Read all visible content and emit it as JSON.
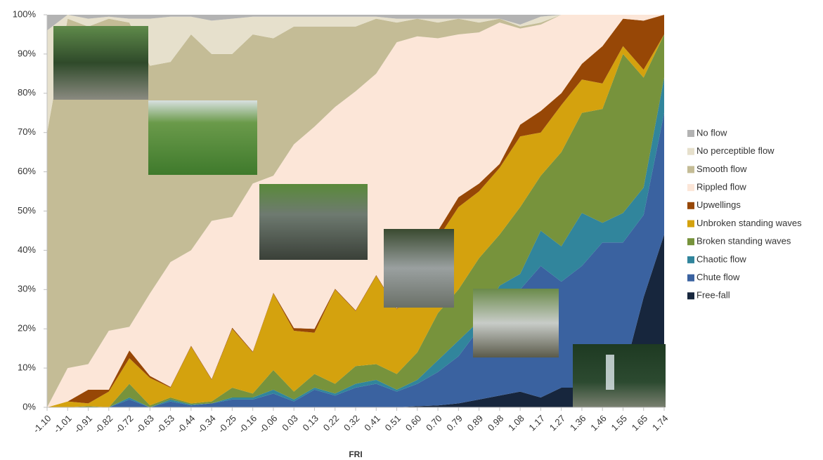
{
  "chart_data": {
    "type": "stacked_area_100",
    "x_label": "FRI",
    "categories": [
      "-1.10",
      "-1.01",
      "-0.91",
      "-0.82",
      "-0.72",
      "-0.63",
      "-0.53",
      "-0.44",
      "-0.34",
      "-0.25",
      "-0.16",
      "-0.06",
      "0.03",
      "0.13",
      "0.22",
      "0.32",
      "0.41",
      "0.51",
      "0.60",
      "0.70",
      "0.79",
      "0.89",
      "0.98",
      "1.08",
      "1.17",
      "1.27",
      "1.36",
      "1.46",
      "1.55",
      "1.65",
      "1.74"
    ],
    "ylim": [
      0,
      100
    ],
    "yticks": [
      {
        "value": 0,
        "label": "0%"
      },
      {
        "value": 10,
        "label": "10%"
      },
      {
        "value": 20,
        "label": "20%"
      },
      {
        "value": 30,
        "label": "30%"
      },
      {
        "value": 40,
        "label": "40%"
      },
      {
        "value": 50,
        "label": "50%"
      },
      {
        "value": 60,
        "label": "60%"
      },
      {
        "value": 70,
        "label": "70%"
      },
      {
        "value": 80,
        "label": "80%"
      },
      {
        "value": 90,
        "label": "90%"
      },
      {
        "value": 100,
        "label": "100%"
      }
    ],
    "grid": false,
    "legend": "right",
    "series": [
      {
        "name": "Free-fall",
        "color": "#17263d",
        "values": [
          0,
          0,
          0,
          0,
          0,
          0,
          0,
          0,
          0,
          0,
          0,
          0,
          0,
          0,
          0,
          0,
          0,
          0,
          0.3,
          0.5,
          1,
          2,
          3,
          4,
          2.5,
          5,
          5,
          5,
          8,
          28,
          44
        ]
      },
      {
        "name": "Chute flow",
        "color": "#3a62a0",
        "values": [
          0,
          0,
          0,
          0,
          2,
          0,
          1.5,
          0.5,
          1,
          2,
          2,
          3.5,
          1.5,
          4.5,
          3,
          5,
          6,
          4,
          5.7,
          8.5,
          12,
          18,
          27,
          26,
          33.5,
          27,
          31,
          37,
          34,
          21,
          31
        ]
      },
      {
        "name": "Chaotic flow",
        "color": "#31859c",
        "values": [
          0,
          0,
          0,
          0,
          0.5,
          0,
          0.5,
          0.2,
          0,
          0.5,
          0.5,
          1,
          0.5,
          0.5,
          0.5,
          1,
          1,
          0.5,
          1,
          3,
          4,
          2,
          1,
          4,
          9,
          9,
          13.5,
          5,
          7.5,
          7,
          9
        ]
      },
      {
        "name": "Broken standing waves",
        "color": "#77933c",
        "values": [
          0,
          0,
          0.3,
          0,
          3.5,
          0.5,
          0.5,
          0.3,
          0.5,
          2.5,
          1,
          5,
          2,
          3.5,
          2.5,
          4.5,
          4,
          4,
          7,
          12,
          13,
          16,
          13,
          17,
          14,
          24,
          25.5,
          29,
          40.5,
          28,
          11
        ]
      },
      {
        "name": "Unbroken standing waves",
        "color": "#d4a20e",
        "values": [
          0,
          1.5,
          0.7,
          4,
          6.5,
          7,
          2.5,
          14.5,
          5.5,
          15,
          10.5,
          19.5,
          15.5,
          10.5,
          24,
          14,
          22.5,
          16.5,
          16,
          19,
          21,
          17,
          17,
          18,
          11,
          12,
          8.5,
          6.5,
          2,
          2,
          0
        ]
      },
      {
        "name": "Upwellings",
        "color": "#974706",
        "values": [
          0,
          0,
          3.5,
          0.5,
          2,
          0.5,
          0.2,
          0.2,
          0.2,
          0.3,
          0.2,
          0.2,
          0.7,
          1,
          0.2,
          0.2,
          0.2,
          0.2,
          0.5,
          2,
          2.5,
          2,
          1,
          3,
          5.5,
          3,
          4,
          9.5,
          7,
          12.5,
          5
        ]
      },
      {
        "name": "Rippled flow",
        "color": "#fce6d8",
        "values": [
          0,
          8.5,
          6.5,
          15,
          6,
          21,
          31.8,
          24.3,
          40.3,
          28.2,
          42.8,
          29.8,
          46.8,
          51.5,
          46.3,
          55.8,
          51.3,
          67.8,
          64,
          49,
          41.5,
          38.5,
          36,
          24.5,
          22,
          20,
          12.5,
          8,
          1,
          1.5,
          0
        ]
      },
      {
        "name": "Smooth flow",
        "color": "#c4bc96",
        "values": [
          70,
          89,
          86,
          79.5,
          77.5,
          58,
          51,
          55,
          42.5,
          41.5,
          38,
          35,
          30,
          25.5,
          20.5,
          16.5,
          14,
          5,
          4.5,
          4,
          4,
          2.5,
          1,
          0.5,
          0.5,
          0,
          0,
          0,
          0,
          0,
          0
        ]
      },
      {
        "name": "No perceptible flow",
        "color": "#e6e0cc",
        "values": [
          26,
          1,
          2,
          0.5,
          1,
          12,
          11.5,
          4.5,
          8.5,
          9,
          4.5,
          5.5,
          2.5,
          2.5,
          2.5,
          2.5,
          0.5,
          1,
          0,
          1,
          0,
          1,
          0,
          0.5,
          1.5,
          0,
          0,
          0,
          0,
          0,
          0
        ]
      },
      {
        "name": "No flow",
        "color": "#b3b3b3",
        "values": [
          4,
          0,
          1,
          0.5,
          1,
          1,
          0.5,
          0.5,
          1.5,
          1,
          0.5,
          0.5,
          0.5,
          0.5,
          0.5,
          0.5,
          0.5,
          1,
          1,
          1,
          1,
          1,
          1,
          2.5,
          0.5,
          0,
          0,
          0,
          0,
          0,
          0
        ]
      }
    ]
  }
}
